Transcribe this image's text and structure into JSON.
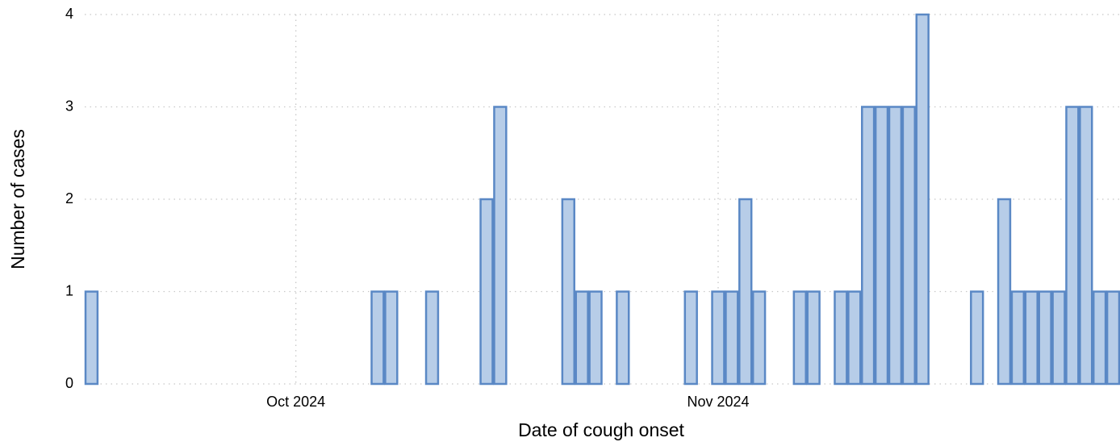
{
  "chart_data": {
    "type": "histogram",
    "xlabel": "Date of cough onset",
    "ylabel": "Number of cases",
    "bins": [
      -15.5,
      -14.5,
      -13.5,
      -12.5,
      -11.5,
      -10.5,
      -9.5,
      -8.5,
      -7.5,
      -6.5,
      -5.5,
      -4.5,
      -3.5,
      -2.5,
      -1.5,
      -0.5,
      0.5,
      1.5,
      2.5,
      3.5,
      4.5,
      5.5,
      6.5,
      7.5,
      8.5,
      9.5,
      10.5,
      11.5,
      12.5,
      13.5,
      14.5,
      15.5,
      16.5,
      17.5,
      18.5,
      19.5,
      20.5,
      21.5,
      22.5,
      23.5,
      24.5,
      25.5,
      26.5,
      27.5,
      28.5,
      29.5,
      30.5,
      31.5,
      32.5,
      33.5,
      34.5,
      35.5,
      36.5,
      37.5,
      38.5,
      39.5,
      40.5,
      41.5,
      42.5,
      43.5,
      44.5,
      45.5,
      46.5,
      47.5,
      48.5,
      49.5,
      50.5,
      51.5,
      52.5,
      53.5,
      54.5,
      55.5,
      56.5,
      57.5,
      58.5,
      59.5,
      60.5
    ],
    "values": [
      1,
      0,
      0,
      0,
      0,
      0,
      0,
      0,
      0,
      0,
      0,
      0,
      0,
      0,
      0,
      0,
      0,
      0,
      0,
      0,
      0,
      1,
      1,
      0,
      0,
      1,
      0,
      0,
      0,
      2,
      3,
      0,
      0,
      0,
      0,
      2,
      1,
      1,
      0,
      1,
      0,
      0,
      0,
      0,
      1,
      0,
      1,
      1,
      2,
      1,
      0,
      0,
      1,
      1,
      0,
      1,
      1,
      3,
      3,
      3,
      3,
      4,
      0,
      0,
      0,
      1,
      0,
      2,
      1,
      1,
      1,
      1,
      3,
      3,
      1,
      1
    ],
    "color": "#b7cde8",
    "edgecolor": "#5a88c5",
    "xlim": [
      -15.5,
      60.5
    ],
    "xticks": [
      {
        "value": 0,
        "label": "Oct 2024"
      },
      {
        "value": 31,
        "label": "Nov 2024"
      }
    ],
    "ylim": [
      0,
      4
    ],
    "yticks": [
      0,
      1,
      2,
      3,
      4
    ],
    "grid": true
  }
}
